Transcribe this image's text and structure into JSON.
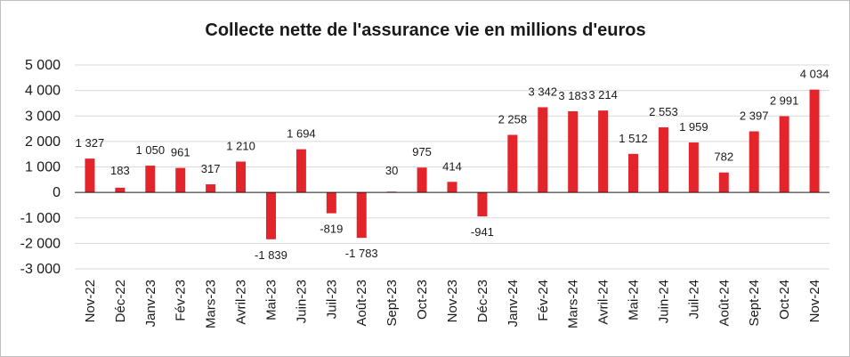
{
  "chart_data": {
    "type": "bar",
    "title": "Collecte nette de l'assurance  vie en millions  d'euros",
    "xlabel": "",
    "ylabel": "",
    "ylim": [
      -3000,
      5000
    ],
    "grid": true,
    "legend": "none",
    "bar_color": "#e3242b",
    "yticks": [
      5000,
      4000,
      3000,
      2000,
      1000,
      0,
      -1000,
      -2000,
      -3000
    ],
    "ytick_labels": [
      "5 000",
      "4 000",
      "3 000",
      "2 000",
      "1 000",
      "0",
      "-1 000",
      "-2 000",
      "-3 000"
    ],
    "categories": [
      "Nov-22",
      "Déc-22",
      "Janv-23",
      "Fév-23",
      "Mars-23",
      "Avril-23",
      "Mai-23",
      "Juin-23",
      "Juil-23",
      "Août-23",
      "Sept-23",
      "Oct-23",
      "Nov-23",
      "Déc-23",
      "Janv-24",
      "Fév-24",
      "Mars-24",
      "Avril-24",
      "Mai-24",
      "Juin-24",
      "Juil-24",
      "Août-24",
      "Sept-24",
      "Oct-24",
      "Nov-24"
    ],
    "values": [
      1327,
      183,
      1050,
      961,
      317,
      1210,
      -1839,
      1694,
      -819,
      -1783,
      30,
      975,
      414,
      -941,
      2258,
      3342,
      3183,
      3214,
      1512,
      2553,
      1959,
      782,
      2397,
      2991,
      4034
    ],
    "data_labels": [
      "1 327",
      "183",
      "1 050",
      "961",
      "317",
      "1 210",
      "-1 839",
      "1 694",
      "-819",
      "-1 783",
      "30",
      "975",
      "414",
      "-941",
      "2 258",
      "3 342",
      "3 183",
      "3 214",
      "1 512",
      "2 553",
      "1 959",
      "782",
      "2 397",
      "2 991",
      "4 034"
    ]
  }
}
